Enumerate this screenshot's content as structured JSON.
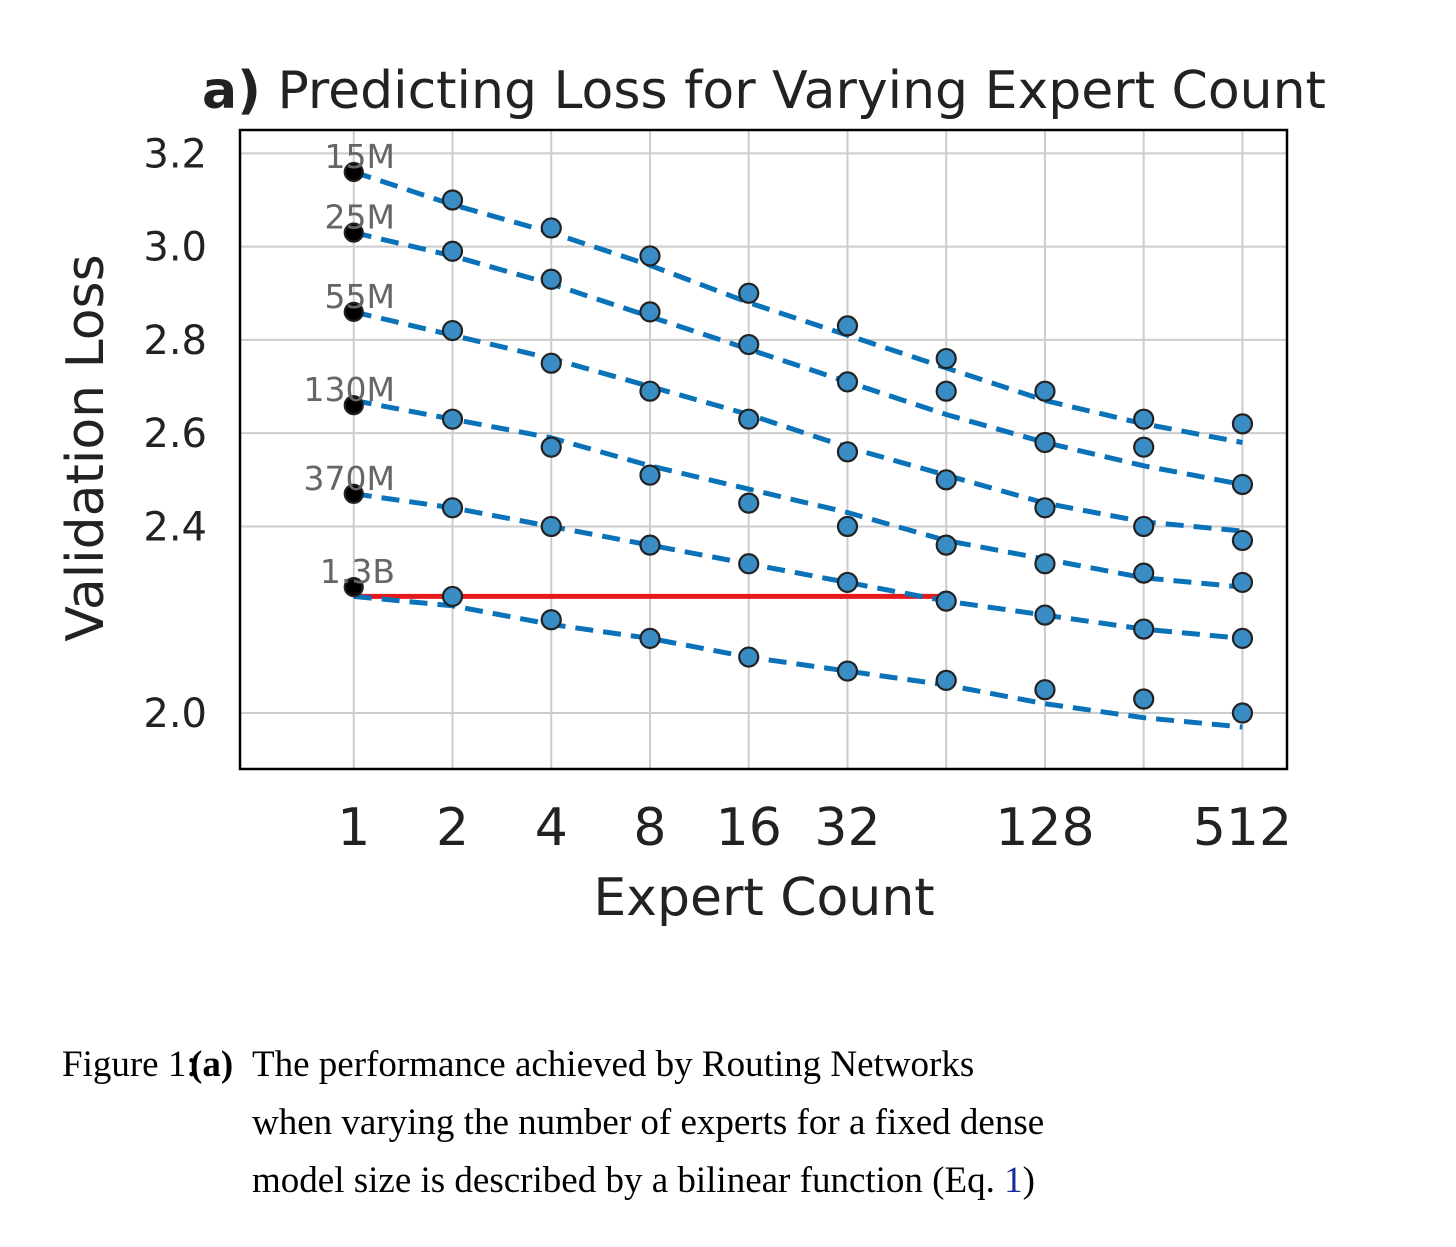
{
  "chart_data": {
    "type": "scatter",
    "title_prefix": "a)",
    "title": "Predicting Loss for Varying Expert Count",
    "xlabel": "Expert Count",
    "ylabel": "Validation Loss",
    "x_scale": "log2",
    "xlim": [
      0.45,
      700
    ],
    "ylim": [
      1.88,
      3.25
    ],
    "x_ticks": [
      {
        "value": 1,
        "label": "1"
      },
      {
        "value": 2,
        "label": "2"
      },
      {
        "value": 4,
        "label": "4"
      },
      {
        "value": 8,
        "label": "8"
      },
      {
        "value": 16,
        "label": "16"
      },
      {
        "value": 32,
        "label": "32"
      },
      {
        "value": 128,
        "label": "128"
      },
      {
        "value": 512,
        "label": "512"
      }
    ],
    "x_grid": [
      1,
      2,
      4,
      8,
      16,
      32,
      64,
      128,
      256,
      512
    ],
    "y_ticks": [
      {
        "value": 2.0,
        "label": "2.0"
      },
      {
        "value": 2.4,
        "label": "2.4"
      },
      {
        "value": 2.6,
        "label": "2.6"
      },
      {
        "value": 2.8,
        "label": "2.8"
      },
      {
        "value": 3.0,
        "label": "3.0"
      },
      {
        "value": 3.2,
        "label": "3.2"
      }
    ],
    "grid": true,
    "series": [
      {
        "name": "15M",
        "x": [
          1,
          2,
          4,
          8,
          16,
          32,
          64,
          128,
          256,
          512
        ],
        "values": [
          3.16,
          3.1,
          3.04,
          2.98,
          2.9,
          2.83,
          2.76,
          2.69,
          2.63,
          2.62
        ],
        "fit": [
          3.16,
          3.09,
          3.03,
          2.96,
          2.88,
          2.81,
          2.74,
          2.67,
          2.62,
          2.58
        ]
      },
      {
        "name": "25M",
        "x": [
          1,
          2,
          4,
          8,
          16,
          32,
          64,
          128,
          256,
          512
        ],
        "values": [
          3.03,
          2.99,
          2.93,
          2.86,
          2.79,
          2.71,
          2.69,
          2.58,
          2.57,
          2.49
        ],
        "fit": [
          3.03,
          2.98,
          2.92,
          2.85,
          2.78,
          2.71,
          2.64,
          2.58,
          2.53,
          2.49
        ]
      },
      {
        "name": "55M",
        "x": [
          1,
          2,
          4,
          8,
          16,
          32,
          64,
          128,
          256,
          512
        ],
        "values": [
          2.86,
          2.82,
          2.75,
          2.69,
          2.63,
          2.56,
          2.5,
          2.44,
          2.4,
          2.37
        ],
        "fit": [
          2.86,
          2.81,
          2.76,
          2.7,
          2.64,
          2.57,
          2.51,
          2.45,
          2.41,
          2.39
        ]
      },
      {
        "name": "130M",
        "x": [
          1,
          2,
          4,
          8,
          16,
          32,
          64,
          128,
          256,
          512
        ],
        "values": [
          2.66,
          2.63,
          2.57,
          2.51,
          2.45,
          2.4,
          2.36,
          2.32,
          2.3,
          2.28
        ],
        "fit": [
          2.67,
          2.63,
          2.59,
          2.53,
          2.48,
          2.43,
          2.37,
          2.33,
          2.29,
          2.27
        ]
      },
      {
        "name": "370M",
        "x": [
          1,
          2,
          4,
          8,
          16,
          32,
          64,
          128,
          256,
          512
        ],
        "values": [
          2.47,
          2.44,
          2.4,
          2.36,
          2.32,
          2.28,
          2.24,
          2.21,
          2.18,
          2.16
        ],
        "fit": [
          2.47,
          2.44,
          2.4,
          2.36,
          2.32,
          2.28,
          2.24,
          2.21,
          2.18,
          2.16
        ]
      },
      {
        "name": "1.3B",
        "x": [
          1,
          2,
          4,
          8,
          16,
          32,
          64,
          128,
          256,
          512
        ],
        "values": [
          2.27,
          2.25,
          2.2,
          2.16,
          2.12,
          2.09,
          2.07,
          2.05,
          2.03,
          2.0
        ],
        "fit": [
          2.25,
          2.23,
          2.19,
          2.16,
          2.12,
          2.09,
          2.06,
          2.02,
          1.99,
          1.97
        ]
      }
    ],
    "reference_line": {
      "y": 2.25,
      "x_from": 1,
      "x_to": 64,
      "color": "#e41a1c"
    },
    "fit_color": "#0a72b8",
    "point_color": "#3a8dc4",
    "dense_point_color": "#000000"
  },
  "caption": {
    "label": "Figure 1:",
    "tag": "(a)",
    "lines": [
      "The performance achieved by Routing Networks",
      "when varying the number of experts for a fixed dense",
      "model size is described by a bilinear function (Eq. "
    ],
    "eq_ref": "1",
    "close": ")"
  }
}
